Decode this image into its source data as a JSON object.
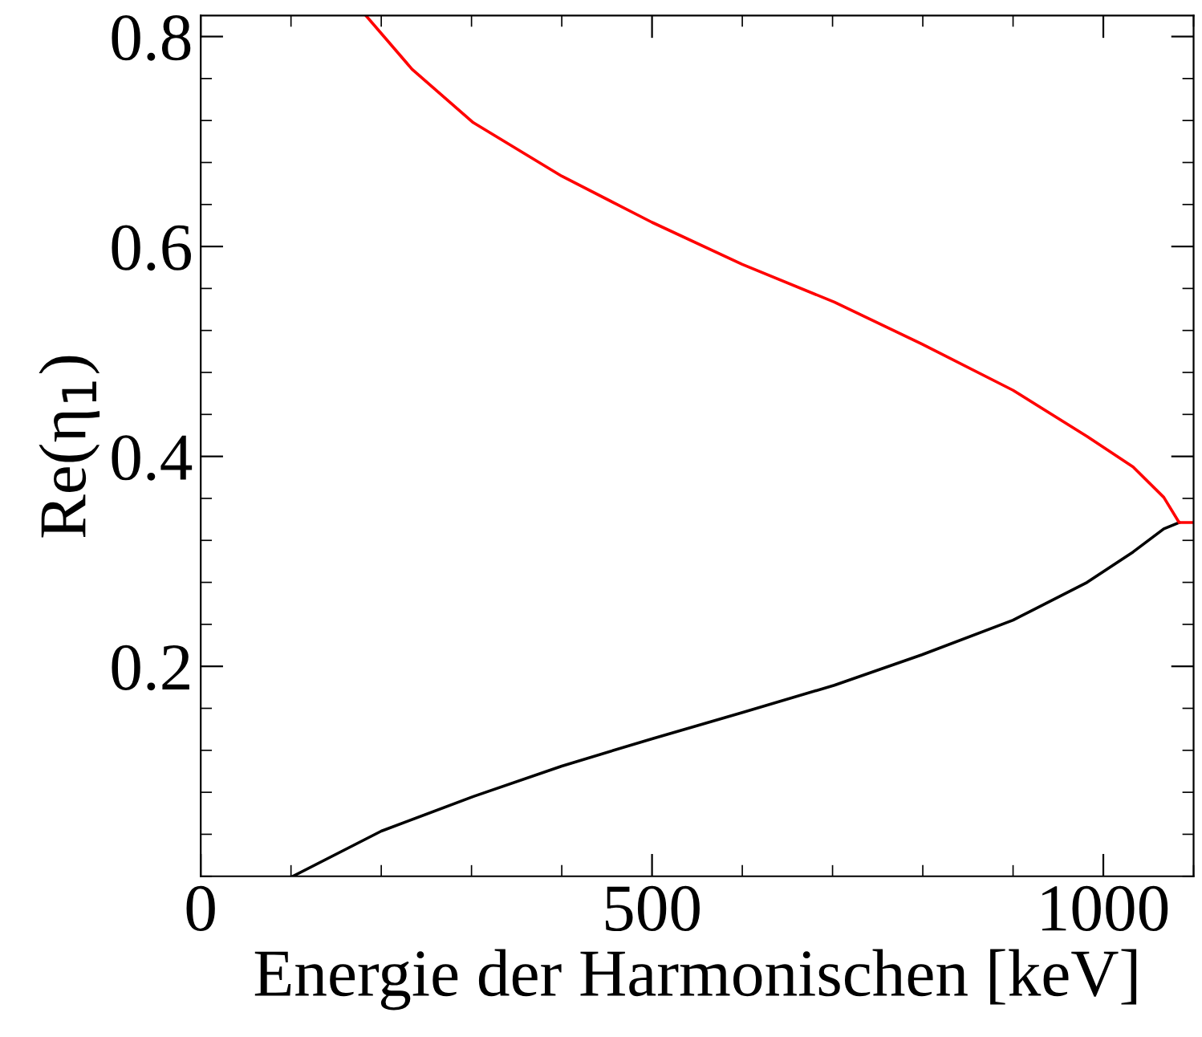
{
  "chart_data": {
    "type": "line",
    "xlabel": "Energie der Harmonischen [keV]",
    "ylabel": "Re(η$_{1}$)",
    "xlim": [
      0,
      1100
    ],
    "xticks": [
      0,
      500,
      1000
    ],
    "ylim": [
      0,
      0.82
    ],
    "yticks": [
      0.2,
      0.4,
      0.6,
      0.8
    ],
    "grid": false,
    "legend": false,
    "marker": "none",
    "line_style": "solid",
    "series": [
      {
        "color": "#000000",
        "x": [
          102,
          200,
          302,
          400,
          500,
          600,
          702,
          799,
          900,
          982,
          1033,
          1067,
          1084
        ],
        "values": [
          0.0,
          0.043,
          0.076,
          0.105,
          0.131,
          0.156,
          0.182,
          0.211,
          0.244,
          0.28,
          0.309,
          0.331,
          0.337
        ]
      },
      {
        "color": "#ff0000",
        "x": [
          1100,
          1084,
          1067,
          1033,
          982,
          900,
          799,
          702,
          600,
          500,
          400,
          302,
          234,
          183
        ],
        "values": [
          0.337,
          0.337,
          0.361,
          0.39,
          0.419,
          0.463,
          0.507,
          0.547,
          0.583,
          0.623,
          0.667,
          0.718,
          0.769,
          0.82
        ]
      }
    ]
  }
}
